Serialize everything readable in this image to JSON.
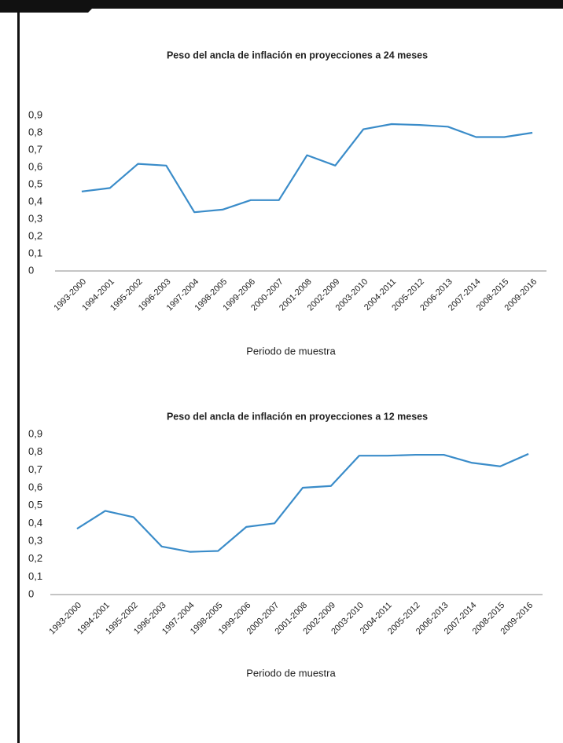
{
  "chart_data": [
    {
      "type": "line",
      "title": "Peso del ancla de inflación en proyecciones a 24 meses",
      "x_label": "Periodo de muestra",
      "categories": [
        "1993-2000",
        "1994-2001",
        "1995-2002",
        "1996-2003",
        "1997-2004",
        "1998-2005",
        "1999-2006",
        "2000-2007",
        "2001-2008",
        "2002-2009",
        "2003-2010",
        "2004-2011",
        "2005-2012",
        "2006-2013",
        "2007-2014",
        "2008-2015",
        "2009-2016"
      ],
      "values": [
        0.46,
        0.48,
        0.62,
        0.61,
        0.34,
        0.355,
        0.41,
        0.41,
        0.67,
        0.61,
        0.82,
        0.85,
        0.845,
        0.835,
        0.775,
        0.775,
        0.8
      ],
      "color": "#3a8cc9",
      "ylim": [
        0,
        0.9
      ],
      "yticks": [
        0,
        {
          "value": 0.1,
          "label": "0,1"
        },
        {
          "value": 0.2,
          "label": "0,2"
        },
        {
          "value": 0.3,
          "label": "0,3"
        },
        {
          "value": 0.4,
          "label": "0,4"
        },
        {
          "value": 0.5,
          "label": "0,5"
        },
        {
          "value": 0.6,
          "label": "0,6"
        },
        {
          "value": 0.7,
          "label": "0,7"
        },
        {
          "value": 0.8,
          "label": "0,8"
        },
        {
          "value": 0.9,
          "label": "0,9"
        }
      ]
    },
    {
      "type": "line",
      "title": "Peso del ancla de inflación en proyecciones a 12 meses",
      "x_label": "Periodo de muestra",
      "categories": [
        "1993-2000",
        "1994-2001",
        "1995-2002",
        "1996-2003",
        "1997-2004",
        "1998-2005",
        "1999-2006",
        "2000-2007",
        "2001-2008",
        "2002-2009",
        "2003-2010",
        "2004-2011",
        "2005-2012",
        "2006-2013",
        "2007-2014",
        "2008-2015",
        "2009-2016"
      ],
      "values": [
        0.37,
        0.47,
        0.435,
        0.27,
        0.24,
        0.245,
        0.38,
        0.4,
        0.6,
        0.61,
        0.78,
        0.78,
        0.785,
        0.785,
        0.74,
        0.72,
        0.79
      ],
      "color": "#3a8cc9",
      "ylim": [
        0,
        0.9
      ],
      "yticks": [
        0,
        {
          "value": 0.1,
          "label": "0,1"
        },
        {
          "value": 0.2,
          "label": "0,2"
        },
        {
          "value": 0.3,
          "label": "0,3"
        },
        {
          "value": 0.4,
          "label": "0,4"
        },
        {
          "value": 0.5,
          "label": "0,5"
        },
        {
          "value": 0.6,
          "label": "0,6"
        },
        {
          "value": 0.7,
          "label": "0,7"
        },
        {
          "value": 0.8,
          "label": "0,8"
        },
        {
          "value": 0.9,
          "label": "0,9"
        }
      ]
    }
  ]
}
